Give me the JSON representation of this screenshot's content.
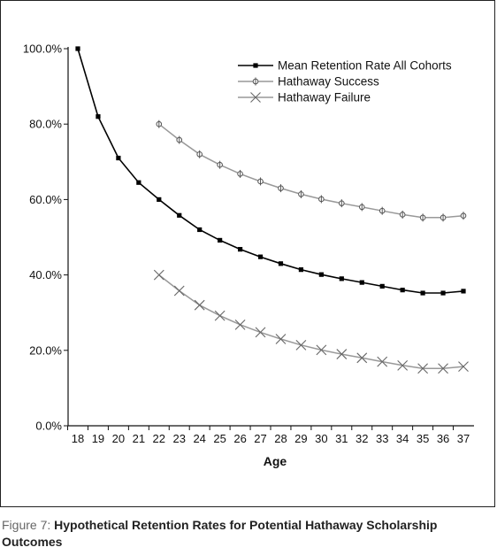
{
  "chart_data": {
    "type": "line",
    "title": "",
    "xlabel": "Age",
    "ylabel": "",
    "x": [
      18,
      19,
      20,
      21,
      22,
      23,
      24,
      25,
      26,
      27,
      28,
      29,
      30,
      31,
      32,
      33,
      34,
      35,
      36,
      37
    ],
    "y_ticks": [
      "0.0%",
      "20.0%",
      "40.0%",
      "60.0%",
      "80.0%",
      "100.0%"
    ],
    "ylim": [
      0,
      100
    ],
    "grid": false,
    "legend_position": "top-right",
    "series": [
      {
        "name": "Mean Retention Rate All Cohorts",
        "color": "#000000",
        "marker": "square",
        "x": [
          18,
          19,
          20,
          21,
          22,
          23,
          24,
          25,
          26,
          27,
          28,
          29,
          30,
          31,
          32,
          33,
          34,
          35,
          36,
          37
        ],
        "values": [
          100,
          82,
          71,
          64.5,
          60,
          55.8,
          52,
          49.2,
          46.8,
          44.8,
          43,
          41.4,
          40.1,
          39,
          38,
          37,
          36,
          35.2,
          35.2,
          35.7
        ]
      },
      {
        "name": "Hathaway Success",
        "color": "#999999",
        "marker": "circle",
        "x": [
          22,
          23,
          24,
          25,
          26,
          27,
          28,
          29,
          30,
          31,
          32,
          33,
          34,
          35,
          36,
          37
        ],
        "values": [
          80,
          75.8,
          72,
          69.2,
          66.8,
          64.8,
          63,
          61.4,
          60.1,
          59,
          58,
          57,
          56,
          55.2,
          55.2,
          55.7
        ]
      },
      {
        "name": "Hathaway Failure",
        "color": "#999999",
        "marker": "x",
        "x": [
          22,
          23,
          24,
          25,
          26,
          27,
          28,
          29,
          30,
          31,
          32,
          33,
          34,
          35,
          36,
          37
        ],
        "values": [
          40,
          35.8,
          32,
          29.2,
          26.8,
          24.8,
          23,
          21.4,
          20.1,
          19,
          18,
          17,
          16,
          15.2,
          15.2,
          15.7
        ]
      }
    ]
  },
  "caption": {
    "figure_label": "Figure 7:",
    "text": " Hypothetical Retention Rates for Potential Hathaway Scholarship Outcomes"
  }
}
